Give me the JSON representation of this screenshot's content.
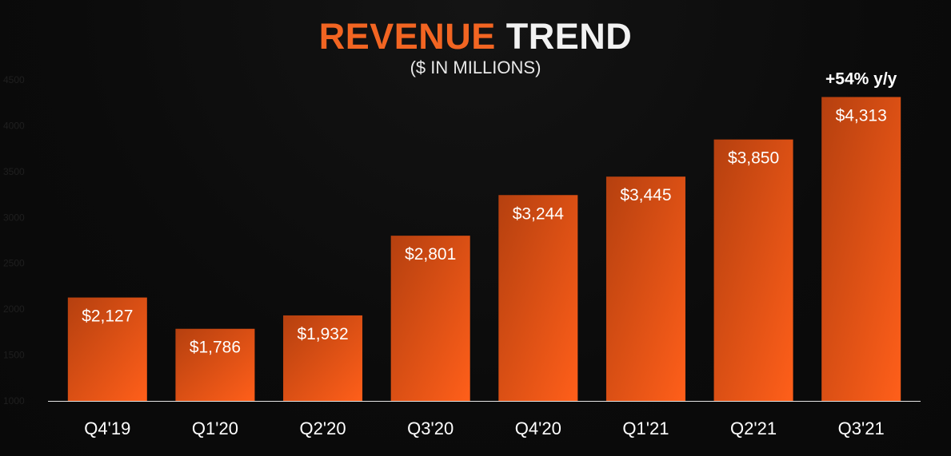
{
  "header": {
    "title_accent": "REVENUE",
    "title_rest": "TREND",
    "subtitle": "($ IN MILLIONS)"
  },
  "chart_data": {
    "type": "bar",
    "title": "REVENUE TREND",
    "subtitle": "($ IN MILLIONS)",
    "categories": [
      "Q4'19",
      "Q1'20",
      "Q2'20",
      "Q3'20",
      "Q4'20",
      "Q1'21",
      "Q2'21",
      "Q3'21"
    ],
    "values": [
      2127,
      1786,
      1932,
      2801,
      3244,
      3445,
      3850,
      4313
    ],
    "data_labels": [
      "$2,127",
      "$1,786",
      "$1,932",
      "$2,801",
      "$3,244",
      "$3,445",
      "$3,850",
      "$4,313"
    ],
    "ylim": [
      1000,
      4500
    ],
    "yticks": [
      "1000",
      "1500",
      "2000",
      "2500",
      "3000",
      "3500",
      "4000",
      "4500"
    ],
    "annotation": "+54% y/y",
    "grid": false,
    "colors": {
      "bar_dark": "#b5400f",
      "bar_light": "#ff5f1a",
      "accent": "#f26522"
    }
  }
}
